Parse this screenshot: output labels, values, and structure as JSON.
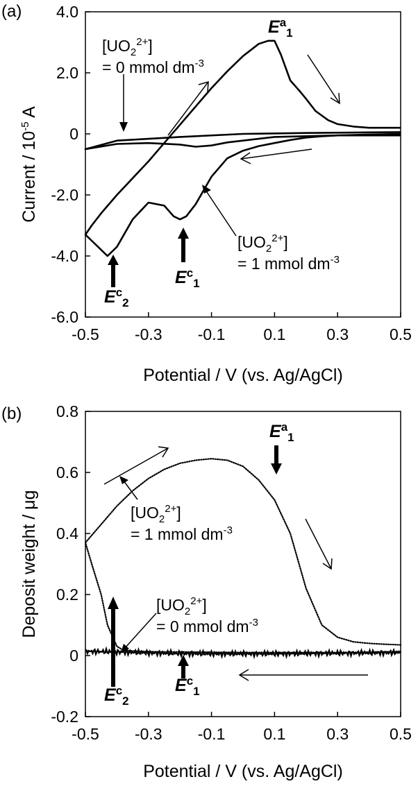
{
  "chart_data": [
    {
      "panel": "(a)",
      "type": "line",
      "xlabel": "Potential / V (vs. Ag/AgCl)",
      "ylabel": {
        "main": "Current / 10",
        "exp": "-5",
        "unit": " A"
      },
      "xlim": [
        -0.5,
        0.5
      ],
      "ylim": [
        -6.0,
        4.0
      ],
      "x_ticks": [
        "-0.5",
        "-0.3",
        "-0.1",
        "0.1",
        "0.3",
        "0.5"
      ],
      "y_ticks": [
        "4.0",
        "2.0",
        "0",
        "-2.0",
        "-4.0",
        "-6.0"
      ],
      "grid": false,
      "series": [
        {
          "name": "1 mmol dm-3",
          "style": "solid",
          "x": [
            0.5,
            0.4,
            0.3,
            0.25,
            0.2,
            0.15,
            0.1,
            0.05,
            0.0,
            -0.05,
            -0.1,
            -0.15,
            -0.18,
            -0.2,
            -0.22,
            -0.25,
            -0.3,
            -0.35,
            -0.4,
            -0.43,
            -0.45,
            -0.48,
            -0.5,
            -0.48,
            -0.45,
            -0.4,
            -0.35,
            -0.3,
            -0.25,
            -0.2,
            -0.15,
            -0.1,
            -0.05,
            0.0,
            0.05,
            0.08,
            0.1,
            0.12,
            0.15,
            0.18,
            0.2,
            0.23,
            0.27,
            0.3,
            0.35,
            0.4,
            0.5
          ],
          "y": [
            0.0,
            -0.02,
            -0.05,
            -0.08,
            -0.12,
            -0.2,
            -0.3,
            -0.4,
            -0.55,
            -0.8,
            -1.4,
            -2.3,
            -2.7,
            -2.8,
            -2.7,
            -2.35,
            -2.25,
            -2.8,
            -3.7,
            -4.0,
            -3.8,
            -3.5,
            -3.3,
            -3.0,
            -2.6,
            -2.0,
            -1.45,
            -0.9,
            -0.3,
            0.3,
            0.9,
            1.5,
            2.05,
            2.55,
            2.95,
            3.05,
            3.05,
            2.6,
            1.75,
            1.4,
            1.15,
            0.75,
            0.45,
            0.32,
            0.24,
            0.2,
            0.2
          ]
        },
        {
          "name": "0 mmol dm-3",
          "style": "solid",
          "x": [
            0.5,
            0.3,
            0.1,
            -0.05,
            -0.1,
            -0.15,
            -0.2,
            -0.3,
            -0.4,
            -0.5,
            -0.4,
            -0.2,
            0.0,
            0.2,
            0.4,
            0.5
          ],
          "y": [
            -0.05,
            -0.05,
            -0.1,
            -0.28,
            -0.38,
            -0.42,
            -0.35,
            -0.3,
            -0.33,
            -0.5,
            -0.22,
            -0.1,
            0.0,
            0.03,
            0.05,
            0.06
          ]
        }
      ],
      "annotations": [
        {
          "label": "E^a_1",
          "x": 0.1,
          "y": 3.05
        },
        {
          "label": "E^c_1",
          "x": -0.2,
          "y": -2.8
        },
        {
          "label": "E^c_2",
          "x": -0.43,
          "y": -4.0
        }
      ]
    },
    {
      "panel": "(b)",
      "type": "scatter",
      "xlabel": "Potential / V (vs. Ag/AgCl)",
      "ylabel": {
        "main": "Deposit weight / μg"
      },
      "xlim": [
        -0.5,
        0.5
      ],
      "ylim": [
        -0.2,
        0.8
      ],
      "x_ticks": [
        "-0.5",
        "-0.3",
        "-0.1",
        "0.1",
        "0.3",
        "0.5"
      ],
      "y_ticks": [
        "0.8",
        "0.6",
        "0.4",
        "0.2",
        "0",
        "-0.2"
      ],
      "grid": false,
      "series": [
        {
          "name": "1 mmol dm-3",
          "style": "dotted",
          "x": [
            0.5,
            0.45,
            0.4,
            0.35,
            0.3,
            0.25,
            0.2,
            0.15,
            0.1,
            0.05,
            0.0,
            -0.05,
            -0.1,
            -0.15,
            -0.2,
            -0.25,
            -0.3,
            -0.35,
            -0.4,
            -0.45,
            -0.5,
            -0.48,
            -0.45,
            -0.43,
            -0.4,
            -0.38,
            -0.35,
            -0.3,
            -0.25,
            -0.2,
            -0.1,
            0.0,
            0.05,
            0.1,
            0.15,
            0.2,
            0.25,
            0.3,
            0.35,
            0.4,
            0.45,
            0.5
          ],
          "y": [
            0.035,
            0.037,
            0.04,
            0.045,
            0.06,
            0.1,
            0.22,
            0.4,
            0.51,
            0.575,
            0.62,
            0.64,
            0.645,
            0.64,
            0.63,
            0.61,
            0.58,
            0.54,
            0.49,
            0.43,
            0.37,
            0.3,
            0.2,
            0.1,
            0.03,
            0.018,
            0.015,
            0.013,
            0.012,
            0.012,
            0.011,
            0.01,
            0.01,
            0.01,
            0.01,
            0.01,
            0.01,
            0.01,
            0.01,
            0.011,
            0.012,
            0.013
          ]
        },
        {
          "name": "0 mmol dm-3",
          "style": "noisy",
          "x": [
            -0.5,
            -0.4,
            -0.3,
            -0.2,
            -0.1,
            0.0,
            0.1,
            0.2,
            0.3,
            0.4,
            0.5
          ],
          "y": [
            0.014,
            0.012,
            0.009,
            0.007,
            0.006,
            0.006,
            0.006,
            0.007,
            0.008,
            0.009,
            0.01
          ]
        }
      ],
      "annotations": [
        {
          "label": "E^a_1",
          "x": 0.1
        },
        {
          "label": "E^c_1",
          "x": -0.2
        },
        {
          "label": "E^c_2",
          "x": -0.44
        }
      ]
    }
  ],
  "labels": {
    "panel_a": "(a)",
    "panel_b": "(b)",
    "conc_species": "[UO",
    "conc_sub": "2",
    "conc_sup": "2+",
    "conc_close": "]",
    "conc_eq_0": "= 0 mmol dm",
    "conc_eq_1": "= 1 mmol dm",
    "conc_exp": "-3",
    "e_letter": "E",
    "sup_a": "a",
    "sup_c": "c",
    "sub_1": "1",
    "sub_2": "2"
  }
}
